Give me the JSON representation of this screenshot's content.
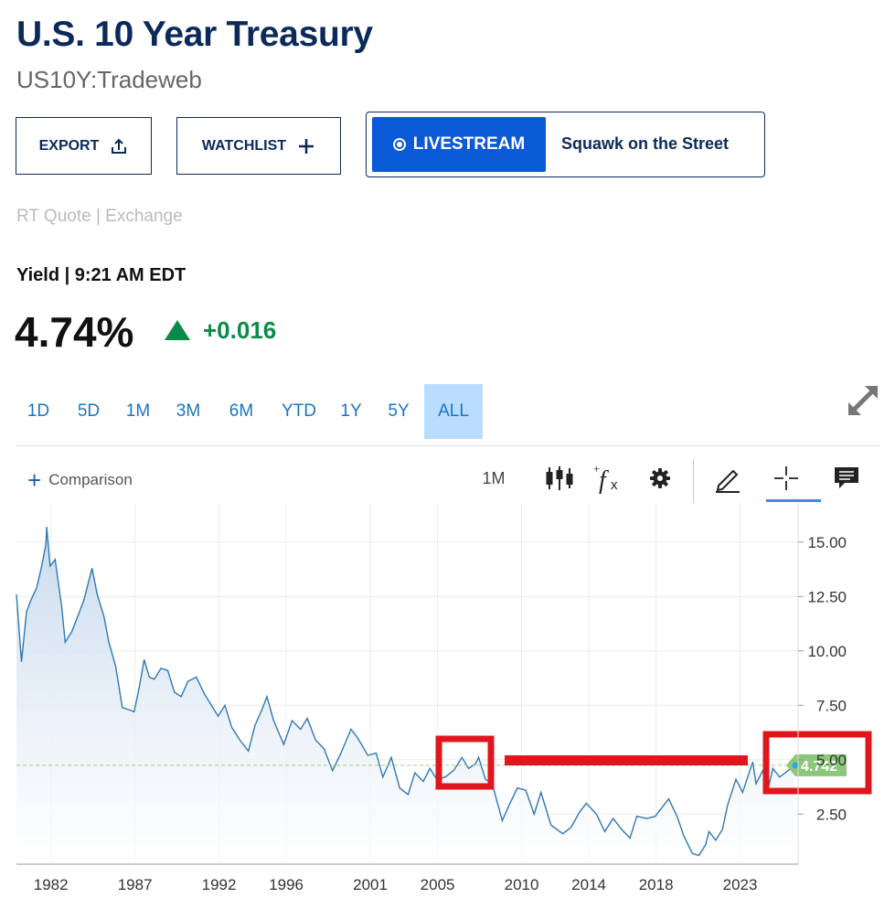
{
  "header": {
    "title": "U.S. 10 Year Treasury",
    "subtitle": "US10Y:Tradeweb"
  },
  "actions": {
    "export_label": "EXPORT",
    "watchlist_label": "WATCHLIST",
    "livestream_label": "LIVESTREAM",
    "livestream_show": "Squawk on the Street"
  },
  "quote": {
    "source": "RT Quote | Exchange",
    "label": "Yield | 9:21 AM EDT",
    "price": "4.74%",
    "change": "+0.016",
    "change_color": "#0a8a4a"
  },
  "ranges": {
    "items": [
      "1D",
      "5D",
      "1M",
      "3M",
      "6M",
      "YTD",
      "1Y",
      "5Y",
      "ALL"
    ],
    "active": "ALL"
  },
  "toolbar": {
    "comparison_label": "Comparison",
    "interval_label": "1M",
    "icons": [
      "candlestick-icon",
      "function-icon",
      "gear-icon",
      "pencil-icon",
      "crosshair-icon",
      "comment-icon"
    ]
  },
  "chart_data": {
    "type": "area",
    "xlabel": "",
    "ylabel": "",
    "x_ticks": [
      "1982",
      "1987",
      "1992",
      "1996",
      "2001",
      "2005",
      "2010",
      "2014",
      "2018",
      "2023"
    ],
    "y_ticks": [
      "2.50",
      "5.00",
      "7.50",
      "10.00",
      "12.50",
      "15.00"
    ],
    "ylim": [
      0.2,
      16.8
    ],
    "xlim": [
      1980.0,
      2026.5
    ],
    "grid": true,
    "last_value_label": "4.742",
    "series_color": "#2f78b5",
    "annotation_color": "#e0161e",
    "series": [
      {
        "values": [
          [
            1980.0,
            12.6
          ],
          [
            1980.3,
            9.5
          ],
          [
            1980.6,
            11.8
          ],
          [
            1980.9,
            12.4
          ],
          [
            1981.2,
            12.9
          ],
          [
            1981.5,
            13.9
          ],
          [
            1981.75,
            14.9
          ],
          [
            1981.8,
            15.7
          ],
          [
            1982.0,
            13.9
          ],
          [
            1982.3,
            14.2
          ],
          [
            1982.7,
            12.0
          ],
          [
            1982.9,
            10.4
          ],
          [
            1983.3,
            10.9
          ],
          [
            1983.7,
            11.7
          ],
          [
            1984.0,
            12.3
          ],
          [
            1984.5,
            13.8
          ],
          [
            1984.8,
            12.6
          ],
          [
            1985.2,
            11.6
          ],
          [
            1985.5,
            10.4
          ],
          [
            1985.9,
            9.3
          ],
          [
            1986.3,
            7.4
          ],
          [
            1986.7,
            7.3
          ],
          [
            1987.0,
            7.2
          ],
          [
            1987.3,
            8.3
          ],
          [
            1987.6,
            9.6
          ],
          [
            1987.9,
            8.8
          ],
          [
            1988.2,
            8.7
          ],
          [
            1988.6,
            9.2
          ],
          [
            1989.0,
            9.1
          ],
          [
            1989.4,
            8.1
          ],
          [
            1989.8,
            7.9
          ],
          [
            1990.2,
            8.6
          ],
          [
            1990.7,
            8.8
          ],
          [
            1991.2,
            8.0
          ],
          [
            1991.6,
            7.5
          ],
          [
            1992.0,
            7.0
          ],
          [
            1992.4,
            7.5
          ],
          [
            1992.8,
            6.5
          ],
          [
            1993.3,
            5.9
          ],
          [
            1993.8,
            5.4
          ],
          [
            1994.2,
            6.6
          ],
          [
            1994.6,
            7.3
          ],
          [
            1994.9,
            7.9
          ],
          [
            1995.3,
            6.8
          ],
          [
            1995.9,
            5.7
          ],
          [
            1996.4,
            6.8
          ],
          [
            1996.9,
            6.4
          ],
          [
            1997.3,
            6.9
          ],
          [
            1997.8,
            5.9
          ],
          [
            1998.3,
            5.5
          ],
          [
            1998.8,
            4.5
          ],
          [
            1999.3,
            5.3
          ],
          [
            1999.9,
            6.4
          ],
          [
            2000.3,
            6.0
          ],
          [
            2000.9,
            5.2
          ],
          [
            2001.4,
            5.3
          ],
          [
            2001.8,
            4.2
          ],
          [
            2002.3,
            5.1
          ],
          [
            2002.8,
            3.7
          ],
          [
            2003.3,
            3.4
          ],
          [
            2003.7,
            4.4
          ],
          [
            2004.2,
            4.0
          ],
          [
            2004.6,
            4.6
          ],
          [
            2005.0,
            4.1
          ],
          [
            2005.5,
            4.2
          ],
          [
            2006.0,
            4.5
          ],
          [
            2006.5,
            5.1
          ],
          [
            2006.9,
            4.6
          ],
          [
            2007.3,
            4.8
          ],
          [
            2007.5,
            5.1
          ],
          [
            2007.9,
            4.1
          ],
          [
            2008.3,
            3.9
          ],
          [
            2008.9,
            2.2
          ],
          [
            2009.3,
            2.9
          ],
          [
            2009.8,
            3.7
          ],
          [
            2010.3,
            3.6
          ],
          [
            2010.8,
            2.5
          ],
          [
            2011.2,
            3.5
          ],
          [
            2011.8,
            2.0
          ],
          [
            2012.5,
            1.6
          ],
          [
            2013.0,
            1.9
          ],
          [
            2013.5,
            2.6
          ],
          [
            2013.9,
            3.0
          ],
          [
            2014.5,
            2.5
          ],
          [
            2015.0,
            1.7
          ],
          [
            2015.5,
            2.3
          ],
          [
            2016.0,
            1.8
          ],
          [
            2016.5,
            1.4
          ],
          [
            2016.9,
            2.4
          ],
          [
            2017.5,
            2.3
          ],
          [
            2018.0,
            2.4
          ],
          [
            2018.8,
            3.2
          ],
          [
            2019.3,
            2.4
          ],
          [
            2019.7,
            1.5
          ],
          [
            2020.2,
            0.7
          ],
          [
            2020.6,
            0.6
          ],
          [
            2021.0,
            1.1
          ],
          [
            2021.2,
            1.7
          ],
          [
            2021.6,
            1.3
          ],
          [
            2022.0,
            1.8
          ],
          [
            2022.3,
            2.9
          ],
          [
            2022.8,
            4.1
          ],
          [
            2023.2,
            3.5
          ],
          [
            2023.8,
            4.9
          ],
          [
            2024.0,
            3.9
          ],
          [
            2024.4,
            4.5
          ],
          [
            2024.7,
            3.6
          ],
          [
            2025.0,
            4.6
          ],
          [
            2025.4,
            4.2
          ],
          [
            2025.9,
            4.5
          ],
          [
            2026.3,
            4.742
          ]
        ]
      }
    ]
  }
}
